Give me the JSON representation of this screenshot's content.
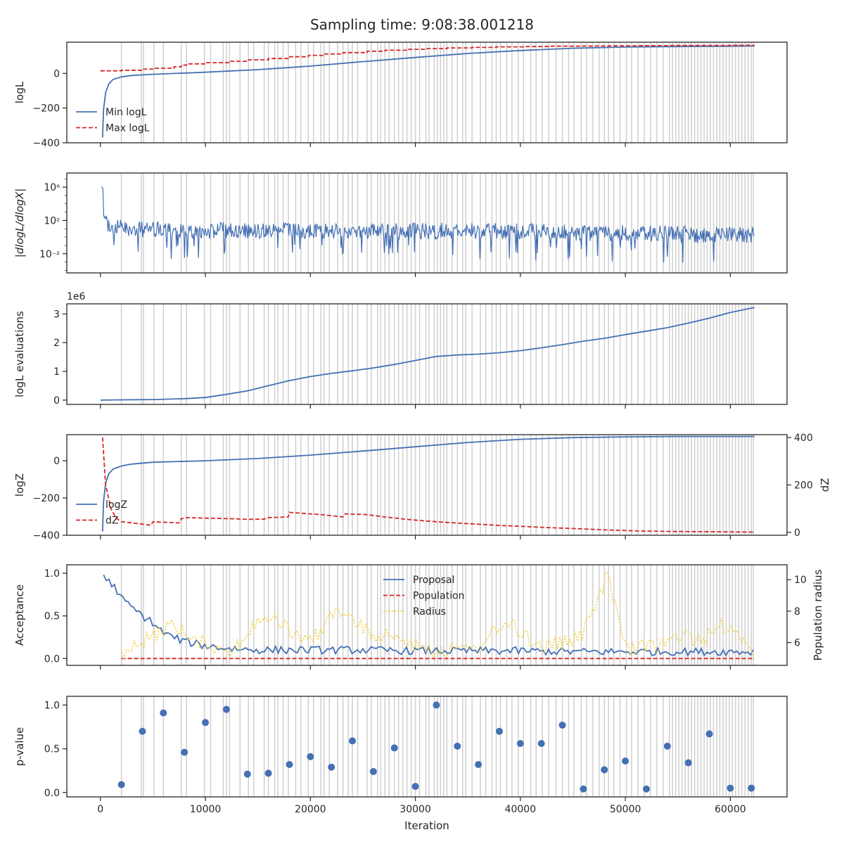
{
  "figure": {
    "title": "Sampling time: 9:08:38.001218",
    "xlabel": "Iteration",
    "xticks": [
      0,
      10000,
      20000,
      30000,
      40000,
      50000,
      60000
    ],
    "xlim": [
      -3200,
      65400
    ],
    "vlines": [
      2000,
      3900,
      4100,
      5100,
      6000,
      7700,
      8200,
      9900,
      10500,
      11700,
      12000,
      12300,
      13300,
      14100,
      14600,
      15600,
      16000,
      16600,
      16900,
      17400,
      17900,
      18600,
      19100,
      19800,
      20300,
      21000,
      21300,
      21800,
      22600,
      23100,
      23600,
      24000,
      24500,
      25400,
      25800,
      26400,
      26700,
      27100,
      27500,
      28000,
      28400,
      28800,
      29200,
      29600,
      30000,
      30400,
      31000,
      31300,
      31800,
      32100,
      32400,
      32700,
      33000,
      33500,
      34000,
      34500,
      34800,
      35400,
      36200,
      36700,
      37300,
      37700,
      38100,
      38700,
      39200,
      39800,
      40300,
      41000,
      41500,
      42100,
      42700,
      43400,
      44000,
      44600,
      45100,
      45800,
      46300,
      46900,
      47500,
      48000,
      48400,
      48900,
      49500,
      50100,
      50600,
      51200,
      51800,
      52400,
      53000,
      53600,
      54200,
      54500,
      54800,
      55100,
      55400,
      55700,
      56000,
      56300,
      56600,
      56900,
      57200,
      57500,
      57800,
      58100,
      58400,
      58700,
      59000,
      59300,
      59600,
      59900,
      60200,
      60500,
      60800,
      61100,
      61400,
      61700,
      62000,
      62200
    ]
  },
  "chart_data": [
    {
      "id": "panel-logl",
      "type": "line",
      "ylabel": "logL",
      "ylim": [
        -400,
        180
      ],
      "yticks": [
        -400,
        -200,
        0
      ],
      "legend": "lower-left",
      "series": [
        {
          "name": "Min logL",
          "style": "solid",
          "color": "#4470b4",
          "x": [
            200,
            300,
            500,
            800,
            1200,
            2000,
            3000,
            5000,
            10000,
            15000,
            20000,
            25000,
            30000,
            35000,
            40000,
            45000,
            50000,
            55000,
            60000,
            62300
          ],
          "y": [
            -370,
            -210,
            -110,
            -60,
            -35,
            -20,
            -12,
            -5,
            7,
            22,
            42,
            68,
            92,
            115,
            132,
            145,
            152,
            155,
            157,
            158
          ]
        },
        {
          "name": "Max logL",
          "style": "dashed",
          "color": "#d62728",
          "step": true,
          "x": [
            0,
            2000,
            3900,
            5100,
            7000,
            7700,
            8200,
            9900,
            12300,
            14100,
            16000,
            17900,
            19800,
            21300,
            23100,
            25400,
            27100,
            29200,
            31000,
            33000,
            35400,
            37700,
            40300,
            42700,
            45800,
            48400,
            51200,
            54200,
            57200,
            60200,
            62300
          ],
          "y": [
            15,
            18,
            25,
            30,
            38,
            48,
            55,
            62,
            70,
            78,
            86,
            96,
            104,
            112,
            120,
            128,
            134,
            139,
            143,
            147,
            150,
            153,
            155,
            157,
            158,
            159,
            160,
            161,
            161,
            162,
            162
          ]
        }
      ]
    },
    {
      "id": "panel-dlogl",
      "type": "line",
      "ylabel": "|dlogL/dlogX|",
      "yscale": "log",
      "ylim": [
        5e-05,
        50000000
      ],
      "yticks": [
        0.01,
        100,
        1000000
      ],
      "yticklabels": [
        "10⁻²",
        "10²",
        "10⁶"
      ],
      "series": [
        {
          "name": "",
          "style": "noise",
          "color": "#4470b4",
          "x": [
            100,
            300,
            1000,
            5000,
            10000,
            20000,
            30000,
            40000,
            50000,
            55000,
            60000,
            62300
          ],
          "y": [
            3000000,
            500,
            100,
            50,
            40,
            40,
            35,
            30,
            20,
            15,
            12,
            10
          ]
        }
      ]
    },
    {
      "id": "panel-evals",
      "type": "line",
      "ylabel": "logL evaluations",
      "offset_label": "1e6",
      "ylim": [
        -0.15,
        3.35
      ],
      "yticks": [
        0,
        1,
        2,
        3
      ],
      "series": [
        {
          "name": "",
          "style": "solid",
          "color": "#4470b4",
          "x": [
            0,
            2000,
            5000,
            8000,
            10000,
            12000,
            14000,
            16000,
            18000,
            20000,
            22000,
            24000,
            26000,
            28000,
            30000,
            32000,
            34000,
            36000,
            38000,
            40000,
            42000,
            44000,
            46000,
            48000,
            50000,
            52000,
            54000,
            56000,
            58000,
            60000,
            62300
          ],
          "y": [
            0.0,
            0.01,
            0.02,
            0.05,
            0.09,
            0.2,
            0.32,
            0.5,
            0.68,
            0.82,
            0.93,
            1.02,
            1.12,
            1.24,
            1.38,
            1.52,
            1.57,
            1.6,
            1.65,
            1.72,
            1.82,
            1.93,
            2.05,
            2.15,
            2.28,
            2.4,
            2.52,
            2.68,
            2.85,
            3.05,
            3.22
          ]
        }
      ]
    },
    {
      "id": "panel-logz",
      "type": "line",
      "ylabel": "logZ",
      "ylabel_right": "dZ",
      "ylim": [
        -400,
        140
      ],
      "yticks": [
        -400,
        -200,
        0
      ],
      "ylim_right": [
        -12,
        412
      ],
      "yticks_right": [
        0,
        200,
        400
      ],
      "legend": "lower-left",
      "series": [
        {
          "name": "logZ",
          "style": "solid",
          "color": "#4470b4",
          "axis": "left",
          "x": [
            200,
            300,
            500,
            800,
            1200,
            2000,
            3000,
            5000,
            10000,
            15000,
            20000,
            25000,
            30000,
            35000,
            40000,
            45000,
            50000,
            55000,
            60000,
            62300
          ],
          "y": [
            -380,
            -220,
            -120,
            -70,
            -45,
            -28,
            -18,
            -8,
            0,
            12,
            30,
            52,
            75,
            98,
            115,
            124,
            128,
            130,
            130,
            130
          ]
        },
        {
          "name": "dZ",
          "style": "dashed",
          "color": "#d62728",
          "axis": "right",
          "x": [
            200,
            500,
            1000,
            1500,
            2000,
            3000,
            4000,
            4800,
            5000,
            7500,
            7700,
            8200,
            10000,
            12300,
            14100,
            15600,
            16000,
            17900,
            18000,
            18100,
            21300,
            23100,
            23300,
            25400,
            27100,
            29200,
            31000,
            33000,
            35400,
            37700,
            40300,
            42700,
            45800,
            48400,
            51200,
            54200,
            57200,
            60200,
            62300
          ],
          "y": [
            400,
            200,
            100,
            60,
            45,
            40,
            35,
            30,
            45,
            40,
            58,
            62,
            60,
            58,
            55,
            56,
            62,
            65,
            85,
            84,
            74,
            65,
            78,
            75,
            65,
            55,
            48,
            42,
            36,
            30,
            25,
            20,
            15,
            10,
            6,
            4,
            3,
            2,
            1
          ]
        }
      ]
    },
    {
      "id": "panel-acceptance",
      "type": "line",
      "ylabel": "Acceptance",
      "ylabel_right": "Population radius",
      "ylim": [
        -0.08,
        1.1
      ],
      "yticks": [
        0.0,
        0.5,
        1.0
      ],
      "ylim_right": [
        4.55,
        10.95
      ],
      "yticks_right": [
        6,
        8,
        10
      ],
      "legend": "upper-center",
      "series": [
        {
          "name": "Proposal",
          "style": "solid",
          "color": "#4470b4",
          "axis": "left",
          "x": [
            300,
            800,
            1500,
            2000,
            3000,
            4000,
            5000,
            6000,
            8000,
            10000,
            12000,
            15000,
            20000,
            25000,
            30000,
            35000,
            40000,
            45000,
            50000,
            55000,
            60000,
            62300
          ],
          "y": [
            0.98,
            0.9,
            0.82,
            0.7,
            0.6,
            0.5,
            0.42,
            0.3,
            0.2,
            0.15,
            0.12,
            0.1,
            0.1,
            0.1,
            0.09,
            0.09,
            0.09,
            0.08,
            0.08,
            0.08,
            0.08,
            0.08
          ]
        },
        {
          "name": "Population",
          "style": "dashed",
          "color": "#d62728",
          "axis": "left",
          "x": [
            2000,
            62300
          ],
          "y": [
            0.0,
            0.0
          ]
        },
        {
          "name": "Radius",
          "style": "dotted",
          "color": "#f5d142",
          "axis": "right",
          "x": [
            2000,
            6600,
            9900,
            12300,
            15600,
            17400,
            19800,
            22600,
            25800,
            28800,
            31800,
            35400,
            38700,
            42100,
            45800,
            48300,
            50100,
            53600,
            55400,
            57200,
            59000,
            62300
          ],
          "y": [
            5.6,
            7.6,
            6.6,
            5.8,
            8.2,
            7.6,
            6.4,
            8.6,
            7.0,
            6.8,
            6.0,
            6.0,
            7.8,
            6.2,
            6.8,
            10.8,
            6.0,
            6.4,
            7.0,
            6.6,
            7.8,
            5.8
          ]
        }
      ]
    },
    {
      "id": "panel-pvalue",
      "type": "scatter",
      "ylabel": "p-value",
      "ylim": [
        -0.05,
        1.1
      ],
      "yticks": [
        0.0,
        0.5,
        1.0
      ],
      "series": [
        {
          "name": "",
          "color": "#4470b4",
          "x": [
            2000,
            4000,
            6000,
            8000,
            10000,
            12000,
            14000,
            16000,
            18000,
            20000,
            22000,
            24000,
            26000,
            28000,
            30000,
            32000,
            34000,
            36000,
            38000,
            40000,
            42000,
            44000,
            46000,
            48000,
            50000,
            52000,
            54000,
            56000,
            58000,
            60000,
            62000
          ],
          "y": [
            0.09,
            0.7,
            0.91,
            0.46,
            0.8,
            0.95,
            0.21,
            0.22,
            0.32,
            0.41,
            0.29,
            0.59,
            0.24,
            0.51,
            0.07,
            1.0,
            0.53,
            0.32,
            0.7,
            0.56,
            0.56,
            0.77,
            0.04,
            0.26,
            0.36,
            0.04,
            0.53,
            0.34,
            0.67,
            0.05,
            0.05
          ]
        }
      ]
    }
  ]
}
